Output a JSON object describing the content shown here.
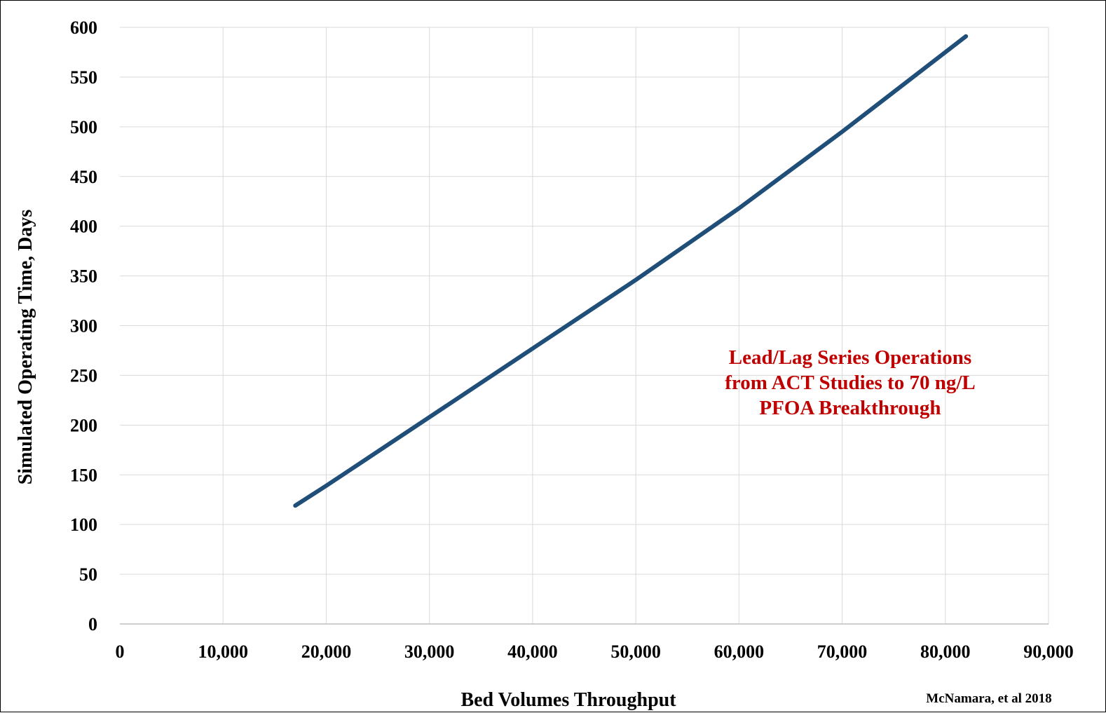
{
  "chart_data": {
    "type": "line",
    "xlabel": "Bed Volumes Throughput",
    "ylabel": "Simulated Operating Time, Days",
    "xlim": [
      0,
      90000
    ],
    "ylim": [
      0,
      600
    ],
    "x_ticks": [
      0,
      10000,
      20000,
      30000,
      40000,
      50000,
      60000,
      70000,
      80000,
      90000
    ],
    "x_tick_labels": [
      "0",
      "10,000",
      "20,000",
      "30,000",
      "40,000",
      "50,000",
      "60,000",
      "70,000",
      "80,000",
      "90,000"
    ],
    "y_ticks": [
      0,
      50,
      100,
      150,
      200,
      250,
      300,
      350,
      400,
      450,
      500,
      550,
      600
    ],
    "y_tick_labels": [
      "0",
      "50",
      "100",
      "150",
      "200",
      "250",
      "300",
      "350",
      "400",
      "450",
      "500",
      "550",
      "600"
    ],
    "grid": true,
    "series": [
      {
        "color": "#1f4e79",
        "x": [
          17000,
          20000,
          30000,
          40000,
          50000,
          60000,
          70000,
          82000
        ],
        "y": [
          119,
          139,
          208,
          277,
          346,
          418,
          495,
          591
        ]
      }
    ],
    "annotation": [
      "Lead/Lag Series Operations",
      "from ACT Studies to 70 ng/L",
      "PFOA Breakthrough"
    ],
    "annotation_color": "#c00000",
    "credit": "McNamara, et al 2018"
  }
}
